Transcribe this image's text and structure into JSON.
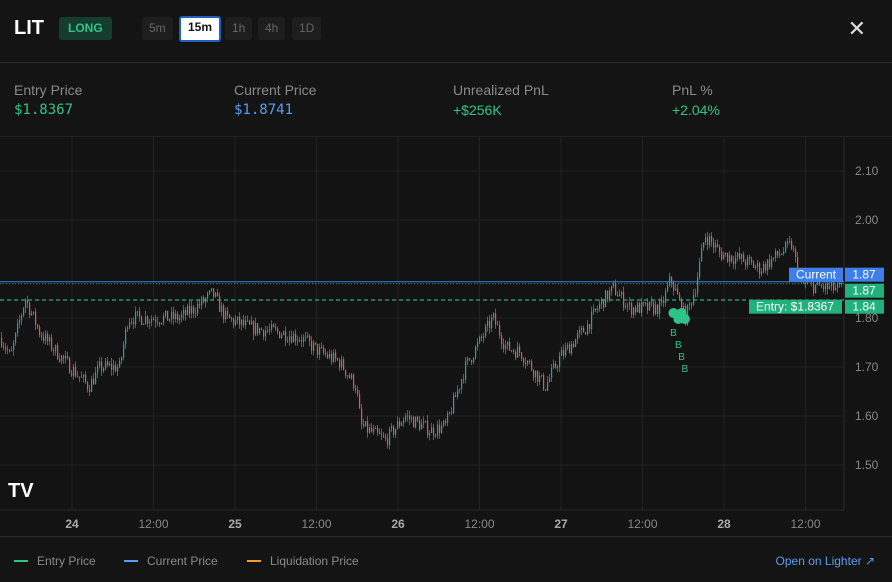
{
  "header": {
    "symbol": "LIT",
    "side": "LONG",
    "timeframes": [
      "5m",
      "15m",
      "1h",
      "4h",
      "1D"
    ],
    "active_timeframe": "15m",
    "close_icon": "close-icon"
  },
  "stats": [
    {
      "label": "Entry Price",
      "value": "$1.8367",
      "color": "#2fc487"
    },
    {
      "label": "Current Price",
      "value": "$1.8741",
      "color": "#5b9cf0"
    },
    {
      "label": "Unrealized PnL",
      "value": "+$256K",
      "color": "#2fc487"
    },
    {
      "label": "PnL %",
      "value": "+2.04%",
      "color": "#2fc487"
    }
  ],
  "chart_data": {
    "type": "candlestick",
    "x_unit": "day",
    "x_ticks": [
      "24",
      "12:00",
      "25",
      "12:00",
      "26",
      "12:00",
      "27",
      "12:00",
      "28",
      "12:00"
    ],
    "y_ticks": [
      "2.10",
      "2.00",
      "1.80",
      "1.70",
      "1.60",
      "1.50"
    ],
    "ylim": [
      1.42,
      2.17
    ],
    "grid": true,
    "up_color": "#26a69a",
    "down_color": "#ef5350",
    "price_path": [
      [
        23.56,
        1.76
      ],
      [
        23.62,
        1.72
      ],
      [
        23.71,
        1.84
      ],
      [
        23.8,
        1.77
      ],
      [
        23.93,
        1.72
      ],
      [
        24.1,
        1.66
      ],
      [
        24.17,
        1.7
      ],
      [
        24.29,
        1.7
      ],
      [
        24.34,
        1.8
      ],
      [
        24.48,
        1.8
      ],
      [
        24.66,
        1.8
      ],
      [
        24.79,
        1.83
      ],
      [
        24.86,
        1.85
      ],
      [
        24.94,
        1.8
      ],
      [
        25.09,
        1.78
      ],
      [
        25.28,
        1.77
      ],
      [
        25.4,
        1.76
      ],
      [
        25.52,
        1.73
      ],
      [
        25.64,
        1.71
      ],
      [
        25.74,
        1.66
      ],
      [
        25.77,
        1.58
      ],
      [
        25.92,
        1.55
      ],
      [
        26.04,
        1.6
      ],
      [
        26.2,
        1.57
      ],
      [
        26.29,
        1.58
      ],
      [
        26.41,
        1.7
      ],
      [
        26.58,
        1.8
      ],
      [
        26.66,
        1.74
      ],
      [
        26.75,
        1.73
      ],
      [
        26.9,
        1.66
      ],
      [
        26.99,
        1.72
      ],
      [
        27.15,
        1.78
      ],
      [
        27.24,
        1.83
      ],
      [
        27.32,
        1.86
      ],
      [
        27.42,
        1.82
      ],
      [
        27.61,
        1.82
      ],
      [
        27.67,
        1.88
      ],
      [
        27.76,
        1.8
      ],
      [
        27.82,
        1.86
      ],
      [
        27.88,
        1.97
      ],
      [
        27.98,
        1.93
      ],
      [
        28.1,
        1.92
      ],
      [
        28.22,
        1.9
      ],
      [
        28.41,
        1.95
      ],
      [
        28.47,
        1.87
      ],
      [
        28.65,
        1.86
      ],
      [
        28.74,
        1.86
      ]
    ],
    "lines": [
      {
        "name": "Current",
        "price": 1.8741,
        "label": "Current",
        "axis_label": "1.87",
        "color": "#3d7ee8"
      },
      {
        "name": "Entry",
        "price": 1.8367,
        "label": "Entry: $1.8367",
        "axis_label": "1.84",
        "color": "#22b07d"
      }
    ],
    "last_price_label": "1.87",
    "buy_markers": {
      "text": "B",
      "days": [
        27.69,
        27.72,
        27.74,
        27.76
      ]
    }
  },
  "legend": [
    {
      "label": "Entry Price",
      "color": "#2fc487"
    },
    {
      "label": "Current Price",
      "color": "#5b9cf0"
    },
    {
      "label": "Liquidation Price",
      "color": "#f0a030"
    }
  ],
  "open_link": "Open on Lighter ↗"
}
